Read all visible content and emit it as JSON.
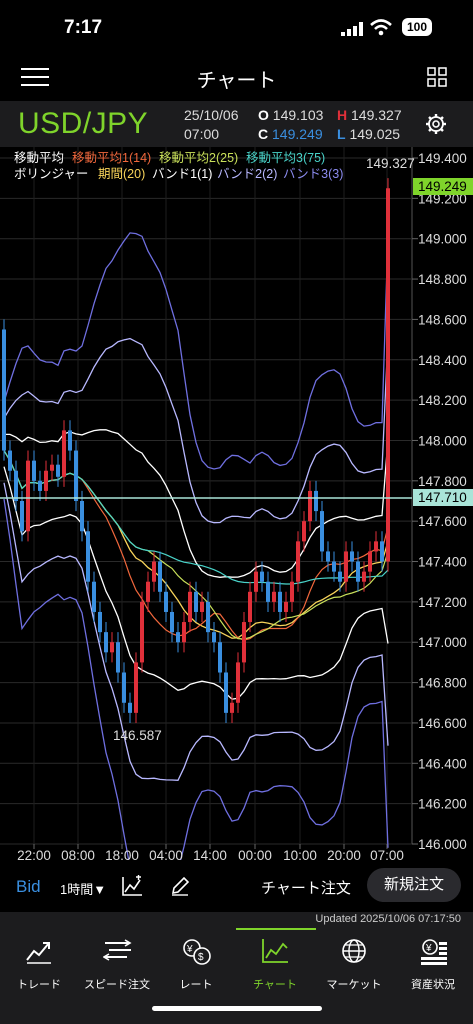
{
  "status_bar": {
    "time": "7:17",
    "battery": "100"
  },
  "header": {
    "title": "チャート"
  },
  "info": {
    "symbol": "USD/JPY",
    "date": "25/10/06",
    "time": "07:00",
    "open_label": "O",
    "open": "149.103",
    "high_label": "H",
    "high": "149.327",
    "close_label": "C",
    "close": "149.249",
    "low_label": "L",
    "low": "149.025"
  },
  "legend": {
    "ma_title": "移動平均",
    "ma1": "移動平均1(14)",
    "ma2": "移動平均2(25)",
    "ma3": "移動平均3(75)",
    "bb_title": "ボリンジャー",
    "period": "期間(20)",
    "band1": "バンド1(1)",
    "band2": "バンド2(2)",
    "band3": "バンド3(3)"
  },
  "colors": {
    "ma1": "#f0673c",
    "ma2": "#c9e05a",
    "ma3": "#49d3c9",
    "period": "#f7d35a",
    "band1": "#ffffff",
    "band2": "#b8b8ff",
    "band3": "#6f6fe0",
    "up_candle": "#e0303a",
    "down_candle": "#3a8fe0",
    "current_price": "#7fd42b"
  },
  "chart_data": {
    "type": "candlestick",
    "y_ticks": [
      "149.400",
      "149.200",
      "149.000",
      "148.800",
      "148.600",
      "148.400",
      "148.200",
      "148.000",
      "147.800",
      "147.600",
      "147.400",
      "147.200",
      "147.000",
      "146.800",
      "146.600",
      "146.400",
      "146.200",
      "146.000"
    ],
    "ylim": [
      146.0,
      149.4
    ],
    "x_ticks": [
      "22:00",
      "08:00",
      "18:00",
      "04:00",
      "14:00",
      "00:00",
      "10:00",
      "20:00",
      "07:00"
    ],
    "current_price": "149.249",
    "crosshair_price": "147.710",
    "high_annotation": "149.327",
    "low_annotation": "146.587",
    "closes": [
      147.95,
      147.85,
      147.7,
      147.55,
      147.9,
      147.8,
      147.75,
      147.85,
      147.88,
      147.82,
      148.05,
      147.95,
      147.7,
      147.55,
      147.3,
      147.15,
      147.05,
      146.95,
      147.0,
      146.85,
      146.7,
      146.65,
      146.9,
      147.2,
      147.3,
      147.4,
      147.25,
      147.15,
      147.05,
      147.0,
      147.1,
      147.25,
      147.15,
      147.2,
      147.05,
      147.0,
      146.85,
      146.65,
      146.7,
      146.9,
      147.1,
      147.25,
      147.35,
      147.3,
      147.2,
      147.25,
      147.15,
      147.2,
      147.3,
      147.5,
      147.6,
      147.75,
      147.65,
      147.45,
      147.4,
      147.35,
      147.3,
      147.45,
      147.4,
      147.3,
      147.35,
      147.45,
      147.5,
      147.4,
      149.25
    ]
  },
  "toolbar": {
    "bid": "Bid",
    "timeframe": "1時間▼",
    "chart_order": "チャート注文",
    "new_order": "新規注文"
  },
  "updated": "Updated  2025/10/06 07:17:50",
  "tabs": [
    {
      "label": "トレード",
      "icon": "trade-chart-icon"
    },
    {
      "label": "スピード注文",
      "icon": "speed-order-icon"
    },
    {
      "label": "レート",
      "icon": "rate-coins-icon"
    },
    {
      "label": "チャート",
      "icon": "chart-icon"
    },
    {
      "label": "マーケット",
      "icon": "globe-icon"
    },
    {
      "label": "資産状況",
      "icon": "assets-icon"
    }
  ]
}
